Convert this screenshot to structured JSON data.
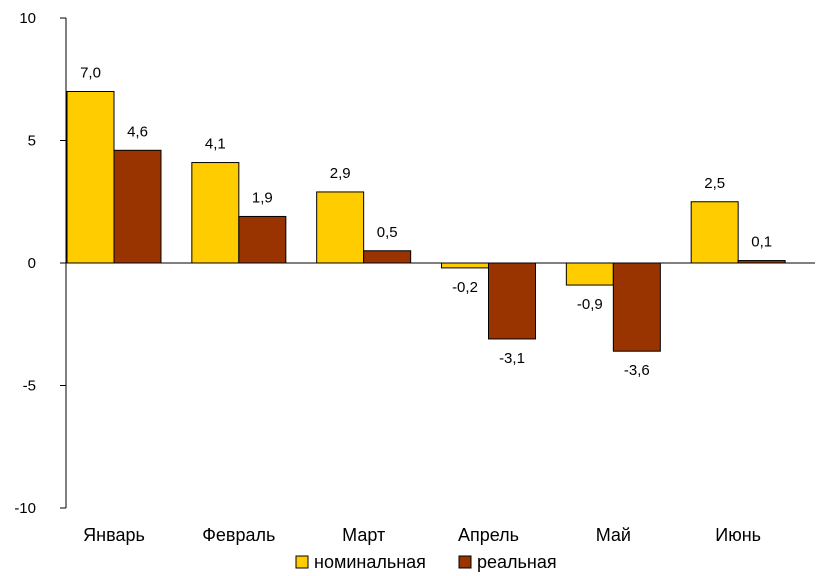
{
  "chart_data": {
    "type": "bar",
    "categories": [
      "Январь",
      "Февраль",
      "Март",
      "Апрель",
      "Май",
      "Июнь"
    ],
    "series": [
      {
        "name": "номинальная",
        "values": [
          7.0,
          4.1,
          2.9,
          -0.2,
          -0.9,
          2.5
        ],
        "labels": [
          "7,0",
          "4,1",
          "2,9",
          "-0,2",
          "-0,9",
          "2,5"
        ],
        "color": "#FFCC00"
      },
      {
        "name": "реальная",
        "values": [
          4.6,
          1.9,
          0.5,
          -3.1,
          -3.6,
          0.1
        ],
        "labels": [
          "4,6",
          "1,9",
          "0,5",
          "-3,1",
          "-3,6",
          "0,1"
        ],
        "color": "#993300"
      }
    ],
    "ylim": [
      -10,
      10
    ],
    "yticks": [
      10,
      5,
      0,
      -5,
      -10
    ],
    "ytick_labels": [
      "10",
      "5",
      "0",
      "-5",
      "-10"
    ],
    "grid": false,
    "legend_position": "bottom",
    "title": "",
    "xlabel": "",
    "ylabel": ""
  }
}
